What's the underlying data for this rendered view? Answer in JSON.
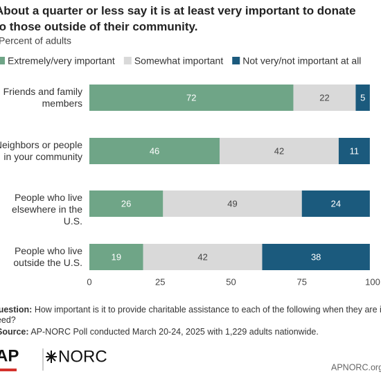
{
  "chart_data": {
    "type": "stacked-bar-horizontal",
    "title": "About a quarter or less say it is at least very important to donate to those outside of their community.",
    "subtitle": "Percent of adults",
    "categories": [
      "Friends and family members",
      "Neighbors or people in your community",
      "People who live elsewhere in the U.S.",
      "People who live outside the U.S."
    ],
    "series": [
      {
        "name": "Extremely/very important",
        "color": "#6fa587",
        "values": [
          72,
          46,
          26,
          19
        ]
      },
      {
        "name": "Somewhat important",
        "color": "#d9d9d9",
        "values": [
          22,
          42,
          49,
          42
        ]
      },
      {
        "name": "Not very/not important at all",
        "color": "#1b5a7d",
        "values": [
          5,
          11,
          24,
          38
        ]
      }
    ],
    "xlim": [
      0,
      100
    ],
    "xticks": [
      0,
      25,
      50,
      75,
      100
    ],
    "grid": false,
    "question_label": "Question:",
    "question_text": "How important is it to provide charitable assistance to each of the following when they are in need?",
    "source_label": "Source:",
    "source_text": "AP-NORC Poll conducted March 20-24, 2025 with 1,229 adults nationwide.",
    "logo_ap": "AP",
    "logo_norc": "NORC",
    "site": "APNORC.org"
  }
}
